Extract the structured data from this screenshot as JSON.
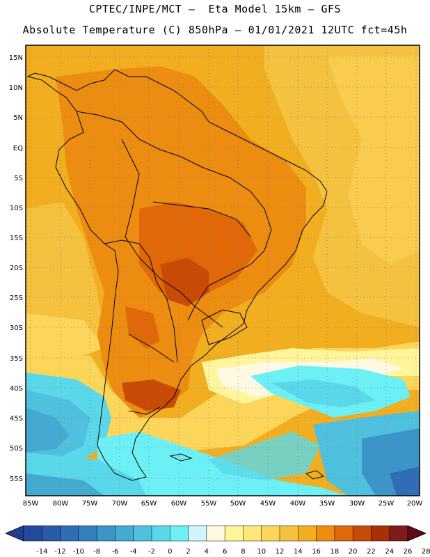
{
  "header": {
    "title_line1": "CPTEC/INPE/MCT –  Eta Model 15km – GFS",
    "title_line2": "Absolute Temperature (C) 850hPa – 01/01/2021 12UTC fct=45h"
  },
  "map": {
    "lat_labels": [
      "15N",
      "10N",
      "5N",
      "EQ",
      "5S",
      "10S",
      "15S",
      "20S",
      "25S",
      "30S",
      "35S",
      "40S",
      "45S",
      "50S",
      "55S"
    ],
    "lon_labels": [
      "85W",
      "80W",
      "75W",
      "70W",
      "65W",
      "60W",
      "55W",
      "50W",
      "45W",
      "40W",
      "35W",
      "30W",
      "25W",
      "20W"
    ]
  },
  "colorbar": {
    "labels": [
      "-14",
      "-12",
      "-10",
      "-8",
      "-6",
      "-4",
      "-2",
      "0",
      "2",
      "4",
      "6",
      "8",
      "10",
      "12",
      "14",
      "16",
      "18",
      "20",
      "22",
      "24",
      "26",
      "28"
    ],
    "colors": [
      "#1e3d8f",
      "#234a9c",
      "#2a5aa8",
      "#2f6db5",
      "#3580be",
      "#3b95c8",
      "#44aad2",
      "#4fc0de",
      "#5ad8ea",
      "#6cf0f6",
      "#cff6fa",
      "#fff8e2",
      "#fff59a",
      "#ffe877",
      "#fbd65a",
      "#f5c240",
      "#f0ae20",
      "#ec8c10",
      "#e06808",
      "#c74a05",
      "#a83008",
      "#7e1c1c",
      "#5e0a18"
    ]
  }
}
